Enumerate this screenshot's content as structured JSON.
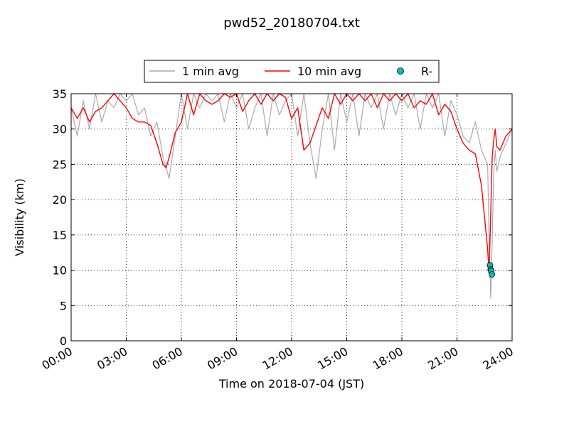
{
  "chart_data": {
    "type": "line",
    "title": "pwd52_20180704.txt",
    "xlabel": "Time on 2018-07-04 (JST)",
    "ylabel": "Visibility (km)",
    "xlim": [
      "00:00",
      "24:00"
    ],
    "ylim": [
      0,
      35
    ],
    "x_ticks": [
      "00:00",
      "03:00",
      "06:00",
      "09:00",
      "12:00",
      "15:00",
      "18:00",
      "21:00",
      "24:00"
    ],
    "y_ticks": [
      "0",
      "5",
      "10",
      "15",
      "20",
      "25",
      "30",
      "35"
    ],
    "grid": true,
    "legend_position": "top-center, outside plot",
    "series": [
      {
        "name": "1 min avg",
        "color": "#aaaaaa",
        "x": [
          "00:00",
          "00:20",
          "00:40",
          "01:00",
          "01:20",
          "01:40",
          "02:00",
          "02:20",
          "02:40",
          "03:00",
          "03:20",
          "03:40",
          "04:00",
          "04:20",
          "04:40",
          "05:00",
          "05:20",
          "05:40",
          "06:00",
          "06:20",
          "06:40",
          "07:00",
          "07:20",
          "07:40",
          "08:00",
          "08:20",
          "08:40",
          "09:00",
          "09:20",
          "09:40",
          "10:00",
          "10:20",
          "10:40",
          "11:00",
          "11:20",
          "11:40",
          "12:00",
          "12:20",
          "12:40",
          "13:00",
          "13:20",
          "13:40",
          "14:00",
          "14:20",
          "14:40",
          "15:00",
          "15:20",
          "15:40",
          "16:00",
          "16:20",
          "16:40",
          "17:00",
          "17:20",
          "17:40",
          "18:00",
          "18:20",
          "18:40",
          "19:00",
          "19:20",
          "19:40",
          "20:00",
          "20:20",
          "20:40",
          "21:00",
          "21:20",
          "21:40",
          "22:00",
          "22:20",
          "22:40",
          "22:45",
          "22:50",
          "22:55",
          "23:00",
          "23:05",
          "23:10",
          "23:20",
          "23:40",
          "24:00"
        ],
        "values": [
          33,
          29,
          34,
          30,
          35,
          31,
          34,
          33,
          35,
          34,
          35,
          32,
          33,
          29,
          31,
          26,
          23,
          29,
          35,
          30,
          35,
          33,
          35,
          34,
          35,
          31,
          35,
          33,
          35,
          30,
          33,
          35,
          29,
          35,
          32,
          34,
          35,
          29,
          35,
          28,
          23,
          30,
          35,
          27,
          35,
          31,
          35,
          29,
          35,
          33,
          35,
          30,
          35,
          32,
          35,
          33,
          35,
          30,
          35,
          33,
          35,
          29,
          34,
          32,
          29,
          28,
          31,
          27,
          25,
          14,
          6,
          14,
          24,
          27,
          24,
          26,
          28,
          30
        ]
      },
      {
        "name": "10 min avg",
        "color": "#ff0000",
        "x": [
          "00:00",
          "00:20",
          "00:40",
          "01:00",
          "01:20",
          "01:40",
          "02:00",
          "02:20",
          "02:40",
          "03:00",
          "03:20",
          "03:40",
          "04:00",
          "04:20",
          "04:40",
          "05:00",
          "05:10",
          "05:20",
          "05:40",
          "06:00",
          "06:20",
          "06:40",
          "07:00",
          "07:20",
          "07:40",
          "08:00",
          "08:20",
          "08:40",
          "09:00",
          "09:20",
          "09:40",
          "10:00",
          "10:20",
          "10:40",
          "11:00",
          "11:20",
          "11:40",
          "12:00",
          "12:20",
          "12:40",
          "13:00",
          "13:20",
          "13:40",
          "14:00",
          "14:20",
          "14:40",
          "15:00",
          "15:20",
          "15:40",
          "16:00",
          "16:20",
          "16:40",
          "17:00",
          "17:20",
          "17:40",
          "18:00",
          "18:20",
          "18:40",
          "19:00",
          "19:20",
          "19:40",
          "20:00",
          "20:20",
          "20:40",
          "21:00",
          "21:20",
          "21:40",
          "22:00",
          "22:20",
          "22:40",
          "22:45",
          "22:50",
          "22:55",
          "23:00",
          "23:05",
          "23:10",
          "23:20",
          "23:40",
          "24:00"
        ],
        "values": [
          33,
          31.5,
          33,
          31,
          32.5,
          33,
          34,
          35,
          34,
          33,
          31.5,
          31,
          31,
          30.5,
          28,
          25,
          24.5,
          26,
          29.5,
          31,
          35,
          32,
          35,
          34,
          33.5,
          34,
          35,
          34.5,
          35,
          32.5,
          34,
          35,
          33.5,
          35,
          34,
          35,
          34.5,
          31.5,
          33,
          27,
          28,
          30.5,
          33,
          31.5,
          35,
          33.5,
          35,
          34,
          35,
          34,
          35,
          33,
          35,
          34,
          35,
          34,
          35,
          33,
          34,
          33.5,
          35,
          32,
          33.5,
          32.5,
          30,
          28,
          27,
          26.5,
          22,
          13,
          9.5,
          18,
          26,
          28.5,
          30,
          27.5,
          27,
          29,
          30
        ]
      },
      {
        "name": "R-",
        "color": "#00bfbf",
        "marker": "circle",
        "x": [
          "22:48",
          "22:50",
          "22:52",
          "22:54"
        ],
        "values": [
          10.7,
          10.1,
          9.9,
          9.4
        ]
      }
    ]
  }
}
